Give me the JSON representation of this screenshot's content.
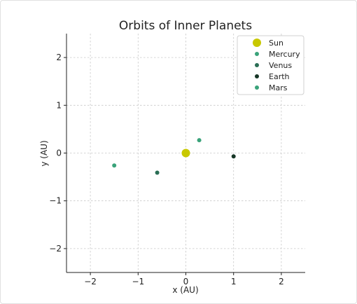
{
  "chart_data": {
    "type": "scatter",
    "title": "Orbits of Inner Planets",
    "xlabel": "x (AU)",
    "ylabel": "y (AU)",
    "xlim": [
      -2.5,
      2.5
    ],
    "ylim": [
      -2.5,
      2.5
    ],
    "xticks": [
      -2,
      -1,
      0,
      1,
      2
    ],
    "yticks": [
      -2,
      -1,
      0,
      1,
      2
    ],
    "grid": true,
    "legend_position": "top-right",
    "series": [
      {
        "name": "Sun",
        "color": "#c8c800",
        "marker": "large-circle",
        "points": [
          [
            0.0,
            0.0
          ]
        ]
      },
      {
        "name": "Mercury",
        "color": "#3aa37a",
        "marker": "circle",
        "points": [
          [
            0.28,
            0.27
          ]
        ]
      },
      {
        "name": "Venus",
        "color": "#2a6e55",
        "marker": "circle",
        "points": [
          [
            -0.6,
            -0.41
          ]
        ]
      },
      {
        "name": "Earth",
        "color": "#163626",
        "marker": "circle",
        "points": [
          [
            1.0,
            -0.07
          ]
        ]
      },
      {
        "name": "Mars",
        "color": "#3aa37a",
        "marker": "circle",
        "points": [
          [
            -1.5,
            -0.26
          ]
        ]
      }
    ]
  }
}
